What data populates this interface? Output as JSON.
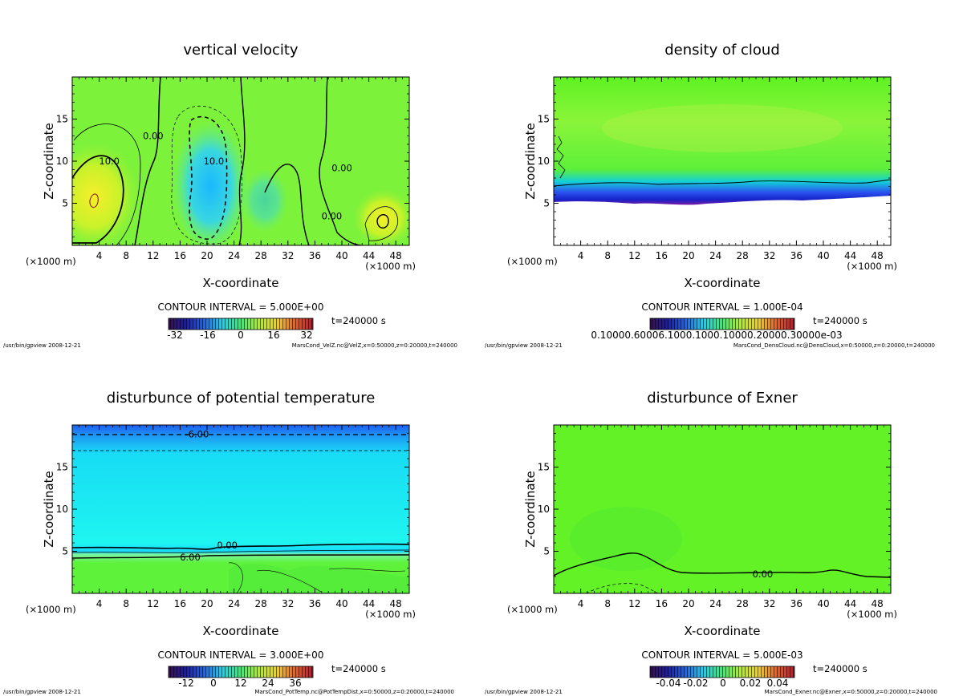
{
  "chart_data": [
    {
      "type": "heatmap",
      "title": "vertical velocity",
      "xlabel": "X-coordinate",
      "ylabel": "Z-coordinate",
      "x_unit_left": "(×1000 m)",
      "x_unit_right": "(×1000 m)",
      "xlim": [
        0,
        50
      ],
      "ylim": [
        0,
        20
      ],
      "xticks": [
        4,
        8,
        12,
        16,
        20,
        24,
        28,
        32,
        36,
        40,
        44,
        48
      ],
      "yticks": [
        5,
        10,
        15
      ],
      "contour_labels": [
        {
          "text": "10.0",
          "x": 5.5,
          "z": 10.0
        },
        {
          "text": "0.00",
          "x": 12.0,
          "z": 13.0
        },
        {
          "text": "10.0",
          "x": 21.0,
          "z": 10.0
        },
        {
          "text": "0.00",
          "x": 40.0,
          "z": 9.2
        },
        {
          "text": "0.00",
          "x": 38.5,
          "z": 3.5
        }
      ],
      "contour_interval": "CONTOUR INTERVAL = 5.000E+00",
      "time": "t=240000 s",
      "colorbar_ticks": [
        "-32",
        "-16",
        "0",
        "16",
        "32"
      ],
      "footer_left": "/usr/bin/gpview  2008-12-21",
      "footer_right": "MarsCond_VelZ.nc@VelZ,x=0:50000,z=0:20000,t=240000"
    },
    {
      "type": "heatmap",
      "title": "density of cloud",
      "xlabel": "X-coordinate",
      "ylabel": "Z-coordinate",
      "x_unit_left": "(×1000 m)",
      "x_unit_right": "(×1000 m)",
      "xlim": [
        0,
        50
      ],
      "ylim": [
        0,
        20
      ],
      "xticks": [
        4,
        8,
        12,
        16,
        20,
        24,
        28,
        32,
        36,
        40,
        44,
        48
      ],
      "yticks": [
        5,
        10,
        15
      ],
      "contour_labels": [],
      "contour_interval": "CONTOUR INTERVAL = 1.000E-04",
      "time": "t=240000 s",
      "colorbar_ticks": [
        "0.10000.60006.1000.1000.10000.20000.30000e-03"
      ],
      "footer_left": "/usr/bin/gpview  2008-12-21",
      "footer_right": "MarsCond_DensCloud.nc@DensCloud,x=0:50000,z=0:20000,t=240000"
    },
    {
      "type": "heatmap",
      "title": "disturbunce of potential temperature",
      "xlabel": "X-coordinate",
      "ylabel": "Z-coordinate",
      "x_unit_left": "(×1000 m)",
      "x_unit_right": "(×1000 m)",
      "xlim": [
        0,
        50
      ],
      "ylim": [
        0,
        20
      ],
      "xticks": [
        4,
        8,
        12,
        16,
        20,
        24,
        28,
        32,
        36,
        40,
        44,
        48
      ],
      "yticks": [
        5,
        10,
        15
      ],
      "contour_labels": [
        {
          "text": "-6.00",
          "x": 18.5,
          "z": 18.9
        },
        {
          "text": "0.00",
          "x": 23.0,
          "z": 5.7
        },
        {
          "text": "6.00",
          "x": 17.5,
          "z": 4.3
        }
      ],
      "contour_interval": "CONTOUR INTERVAL = 3.000E+00",
      "time": "t=240000 s",
      "colorbar_ticks": [
        "-12",
        "0",
        "12",
        "24",
        "36"
      ],
      "footer_left": "/usr/bin/gpview  2008-12-21",
      "footer_right": "MarsCond_PotTemp.nc@PotTempDist,x=0:50000,z=0:20000,t=240000"
    },
    {
      "type": "heatmap",
      "title": "disturbunce of Exner",
      "xlabel": "X-coordinate",
      "ylabel": "Z-coordinate",
      "x_unit_left": "(×1000 m)",
      "x_unit_right": "(×1000 m)",
      "xlim": [
        0,
        50
      ],
      "ylim": [
        0,
        20
      ],
      "xticks": [
        4,
        8,
        12,
        16,
        20,
        24,
        28,
        32,
        36,
        40,
        44,
        48
      ],
      "yticks": [
        5,
        10,
        15
      ],
      "contour_labels": [
        {
          "text": "0.00",
          "x": 31.0,
          "z": 2.3
        }
      ],
      "contour_interval": "CONTOUR INTERVAL = 5.000E-03",
      "time": "t=240000 s",
      "colorbar_ticks": [
        "-0.04",
        "-0.02",
        "0",
        "0.02",
        "0.04"
      ],
      "footer_left": "/usr/bin/gpview  2008-12-21",
      "footer_right": "MarsCond_Exner.nc@Exner,x=0:50000,z=0:20000,t=240000"
    }
  ]
}
